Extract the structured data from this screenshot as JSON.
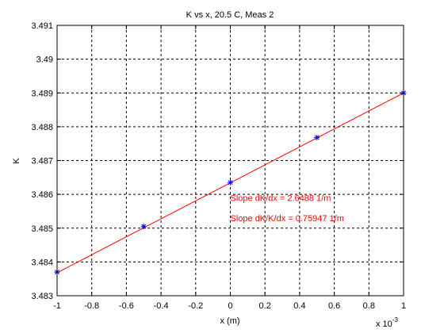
{
  "chart_data": {
    "type": "line",
    "title": "K vs x, 20.5 C, Meas 2",
    "xlabel": "x (m)",
    "ylabel": "K",
    "x_multiplier_label": {
      "base": "x 10",
      "exponent": "-3"
    },
    "xlim": [
      -1,
      1
    ],
    "ylim": [
      3.483,
      3.491
    ],
    "x_ticks": [
      -1,
      -0.8,
      -0.6,
      -0.4,
      -0.2,
      0,
      0.2,
      0.4,
      0.6,
      0.8,
      1
    ],
    "x_tick_labels": [
      "-1",
      "-0.8",
      "-0.6",
      "-0.4",
      "-0.2",
      "0",
      "0.2",
      "0.4",
      "0.6",
      "0.8",
      "1"
    ],
    "y_ticks": [
      3.483,
      3.484,
      3.485,
      3.486,
      3.487,
      3.488,
      3.489,
      3.49,
      3.491
    ],
    "y_tick_labels": [
      "3.483",
      "3.484",
      "3.485",
      "3.486",
      "3.487",
      "3.488",
      "3.489",
      "3.49",
      "3.491"
    ],
    "grid": true,
    "series": [
      {
        "kind": "scatter",
        "marker": "asterisk",
        "color": "#0000ff",
        "x": [
          -1,
          -0.5,
          0,
          0.5,
          1
        ],
        "y": [
          3.4837,
          3.48505,
          3.48635,
          3.48768,
          3.489
        ]
      },
      {
        "kind": "line",
        "color": "#ff0000",
        "x": [
          -1,
          1
        ],
        "y": [
          3.48368,
          3.489
        ]
      }
    ],
    "annotations": [
      {
        "text": "Slope dK/dx = 2.6488 1/m",
        "x": 0,
        "y": 3.4858,
        "color": "#ff0000"
      },
      {
        "text": "Slope dK/K/dx = 0.75947 1/m",
        "x": 0,
        "y": 3.4852,
        "color": "#ff0000"
      }
    ]
  }
}
